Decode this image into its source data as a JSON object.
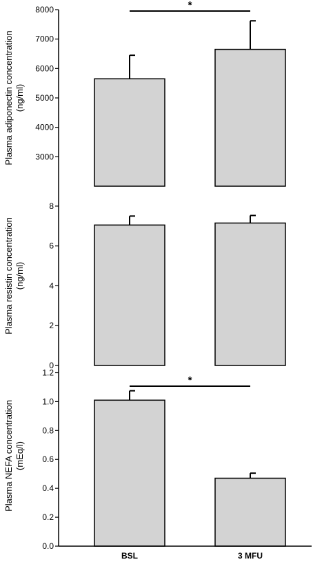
{
  "chart_data": [
    {
      "type": "bar",
      "categories": [
        "BSL",
        "3 MFU"
      ],
      "values": [
        5650,
        6650
      ],
      "errors": [
        800,
        970
      ],
      "ylabel_line1": "Plasma adiponectin concentration",
      "ylabel_line2": "(ng/ml)",
      "ylim": [
        2000,
        8000
      ],
      "yticks": [
        3000,
        4000,
        5000,
        6000,
        7000,
        8000
      ],
      "significance": "*",
      "bar_color": "#d3d3d3"
    },
    {
      "type": "bar",
      "categories": [
        "BSL",
        "3 MFU"
      ],
      "values": [
        7.05,
        7.15
      ],
      "errors": [
        0.45,
        0.38
      ],
      "ylabel_line1": "Plasma resistin concentration",
      "ylabel_line2": "(ng/ml)",
      "ylim": [
        0,
        9
      ],
      "yticks": [
        0,
        2,
        4,
        6,
        8
      ],
      "significance": "",
      "bar_color": "#d3d3d3"
    },
    {
      "type": "bar",
      "categories": [
        "BSL",
        "3 MFU"
      ],
      "values": [
        1.01,
        0.47
      ],
      "errors": [
        0.065,
        0.035
      ],
      "ylabel_line1": "Plasma NEFA concentration",
      "ylabel_line2": "(mEq/l)",
      "ylim": [
        0,
        1.25
      ],
      "yticks": [
        0.0,
        0.2,
        0.4,
        0.6,
        0.8,
        1.0,
        1.2
      ],
      "tick_decimals": 1,
      "significance": "*",
      "bar_color": "#d3d3d3"
    }
  ]
}
